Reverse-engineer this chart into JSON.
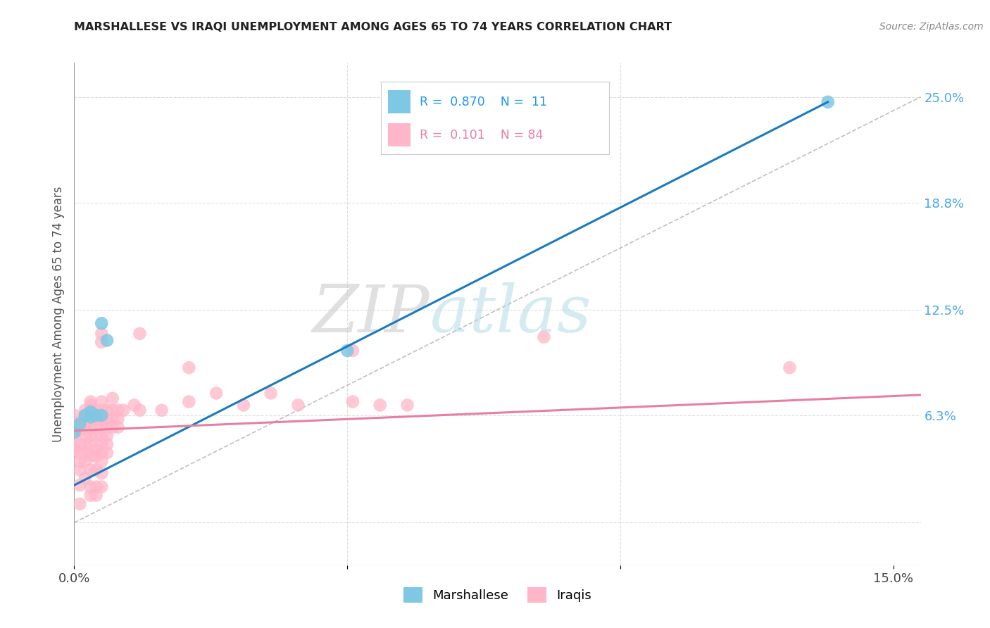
{
  "title": "MARSHALLESE VS IRAQI UNEMPLOYMENT AMONG AGES 65 TO 74 YEARS CORRELATION CHART",
  "source": "Source: ZipAtlas.com",
  "ylabel": "Unemployment Among Ages 65 to 74 years",
  "xlim": [
    0.0,
    0.155
  ],
  "ylim": [
    -0.025,
    0.27
  ],
  "right_yticks": [
    0.0,
    0.063,
    0.125,
    0.188,
    0.25
  ],
  "right_yticklabels": [
    "",
    "6.3%",
    "12.5%",
    "18.8%",
    "25.0%"
  ],
  "watermark_zip": "ZIP",
  "watermark_atlas": "atlas",
  "marshallese_color": "#7ec8e3",
  "iraqi_color": "#ffb6c8",
  "marshallese_line_color": "#1a7bbf",
  "iraqi_line_color": "#e87fa0",
  "dashed_line_color": "#b0b0b0",
  "marshallese_points": [
    [
      0.0,
      0.053
    ],
    [
      0.001,
      0.058
    ],
    [
      0.002,
      0.063
    ],
    [
      0.003,
      0.065
    ],
    [
      0.003,
      0.062
    ],
    [
      0.004,
      0.063
    ],
    [
      0.005,
      0.063
    ],
    [
      0.005,
      0.117
    ],
    [
      0.006,
      0.107
    ],
    [
      0.05,
      0.101
    ],
    [
      0.138,
      0.247
    ]
  ],
  "iraqi_points": [
    [
      0.0,
      0.056
    ],
    [
      0.0,
      0.063
    ],
    [
      0.0,
      0.05
    ],
    [
      0.0,
      0.043
    ],
    [
      0.001,
      0.059
    ],
    [
      0.001,
      0.054
    ],
    [
      0.001,
      0.046
    ],
    [
      0.001,
      0.041
    ],
    [
      0.001,
      0.036
    ],
    [
      0.001,
      0.031
    ],
    [
      0.001,
      0.022
    ],
    [
      0.001,
      0.011
    ],
    [
      0.002,
      0.066
    ],
    [
      0.002,
      0.063
    ],
    [
      0.002,
      0.059
    ],
    [
      0.002,
      0.056
    ],
    [
      0.002,
      0.051
    ],
    [
      0.002,
      0.046
    ],
    [
      0.002,
      0.041
    ],
    [
      0.002,
      0.036
    ],
    [
      0.002,
      0.026
    ],
    [
      0.003,
      0.071
    ],
    [
      0.003,
      0.069
    ],
    [
      0.003,
      0.066
    ],
    [
      0.003,
      0.061
    ],
    [
      0.003,
      0.056
    ],
    [
      0.003,
      0.051
    ],
    [
      0.003,
      0.046
    ],
    [
      0.003,
      0.039
    ],
    [
      0.003,
      0.031
    ],
    [
      0.003,
      0.021
    ],
    [
      0.003,
      0.016
    ],
    [
      0.004,
      0.066
    ],
    [
      0.004,
      0.061
    ],
    [
      0.004,
      0.056
    ],
    [
      0.004,
      0.051
    ],
    [
      0.004,
      0.043
    ],
    [
      0.004,
      0.039
    ],
    [
      0.004,
      0.031
    ],
    [
      0.004,
      0.021
    ],
    [
      0.004,
      0.016
    ],
    [
      0.005,
      0.111
    ],
    [
      0.005,
      0.106
    ],
    [
      0.005,
      0.071
    ],
    [
      0.005,
      0.066
    ],
    [
      0.005,
      0.061
    ],
    [
      0.005,
      0.056
    ],
    [
      0.005,
      0.051
    ],
    [
      0.005,
      0.046
    ],
    [
      0.005,
      0.041
    ],
    [
      0.005,
      0.036
    ],
    [
      0.005,
      0.029
    ],
    [
      0.005,
      0.021
    ],
    [
      0.006,
      0.066
    ],
    [
      0.006,
      0.061
    ],
    [
      0.006,
      0.056
    ],
    [
      0.006,
      0.051
    ],
    [
      0.006,
      0.046
    ],
    [
      0.006,
      0.041
    ],
    [
      0.007,
      0.073
    ],
    [
      0.007,
      0.066
    ],
    [
      0.007,
      0.061
    ],
    [
      0.007,
      0.056
    ],
    [
      0.008,
      0.066
    ],
    [
      0.008,
      0.061
    ],
    [
      0.008,
      0.056
    ],
    [
      0.009,
      0.066
    ],
    [
      0.011,
      0.069
    ],
    [
      0.012,
      0.111
    ],
    [
      0.012,
      0.066
    ],
    [
      0.016,
      0.066
    ],
    [
      0.021,
      0.091
    ],
    [
      0.021,
      0.071
    ],
    [
      0.026,
      0.076
    ],
    [
      0.031,
      0.069
    ],
    [
      0.036,
      0.076
    ],
    [
      0.041,
      0.069
    ],
    [
      0.051,
      0.101
    ],
    [
      0.051,
      0.071
    ],
    [
      0.056,
      0.069
    ],
    [
      0.061,
      0.069
    ],
    [
      0.086,
      0.109
    ],
    [
      0.131,
      0.091
    ]
  ],
  "marshallese_trend_x": [
    0.0,
    0.138
  ],
  "marshallese_trend_y": [
    0.022,
    0.247
  ],
  "iraqi_trend_x": [
    0.0,
    0.155
  ],
  "iraqi_trend_y": [
    0.054,
    0.075
  ]
}
